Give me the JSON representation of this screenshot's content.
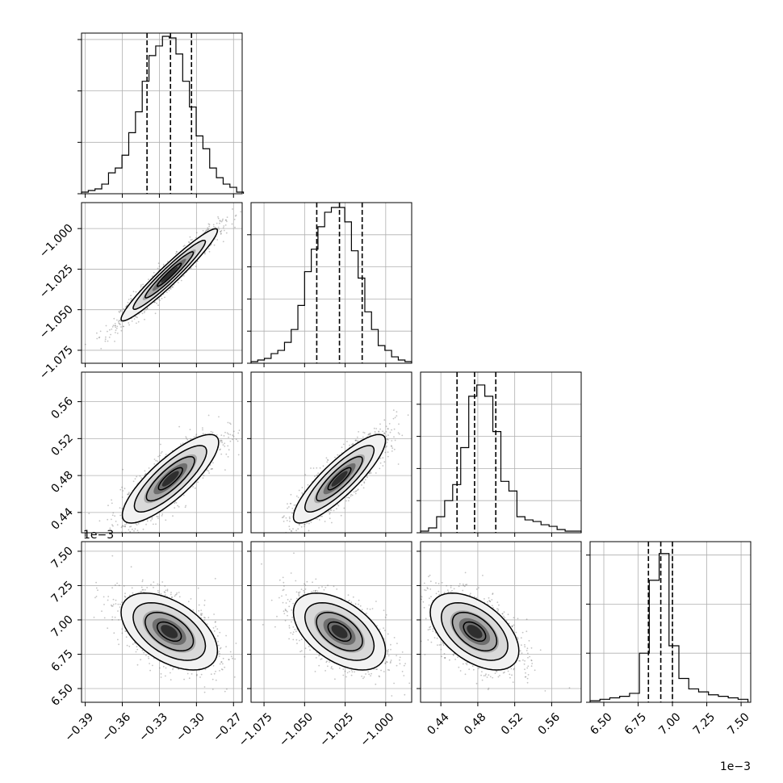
{
  "chart_data": {
    "type": "corner",
    "grid": true,
    "params": [
      {
        "index": 0,
        "axis_ticks": [
          -0.39,
          -0.36,
          -0.33,
          -0.3,
          -0.27
        ],
        "tick_labels": [
          "−0.39",
          "−0.36",
          "−0.33",
          "−0.30",
          "−0.27"
        ],
        "range": [
          -0.393,
          -0.263
        ],
        "quantiles": [
          -0.34,
          -0.321,
          -0.304
        ],
        "hist_bins": [
          -0.393,
          -0.262
        ],
        "hist_counts": [
          1,
          2,
          3,
          6,
          13,
          16,
          24,
          38,
          51,
          70,
          86,
          92,
          98,
          97,
          87,
          70,
          54,
          36,
          28,
          16,
          10,
          6,
          4,
          1
        ],
        "hist_max": 100,
        "hist_ticks": [
          0,
          32,
          64,
          96
        ]
      },
      {
        "index": 1,
        "axis_ticks": [
          -1.075,
          -1.05,
          -1.025,
          -1.0
        ],
        "tick_labels": [
          "−1.075",
          "−1.050",
          "−1.025",
          "−1.000"
        ],
        "range": [
          -1.083,
          -0.984
        ],
        "quantiles": [
          -1.0425,
          -1.0285,
          -1.0145
        ],
        "hist_bins": [
          -1.083,
          -0.984
        ],
        "hist_counts": [
          1,
          2,
          3,
          6,
          8,
          13,
          21,
          36,
          57,
          71,
          85,
          94,
          97,
          97,
          88,
          70,
          53,
          32,
          21,
          11,
          8,
          4,
          2,
          1
        ],
        "hist_max": 100,
        "hist_ticks": [
          0,
          20,
          40,
          60,
          80
        ]
      },
      {
        "index": 2,
        "axis_ticks": [
          0.44,
          0.48,
          0.52,
          0.56
        ],
        "tick_labels": [
          "0.44",
          "0.48",
          "0.52",
          "0.56"
        ],
        "range": [
          0.418,
          0.592
        ],
        "quantiles": [
          0.4575,
          0.4765,
          0.4995
        ],
        "hist_bins": [
          0.418,
          0.592
        ],
        "hist_counts": [
          1,
          3,
          10,
          20,
          30,
          53,
          85,
          92,
          85,
          63,
          32,
          26,
          10,
          8,
          7,
          5,
          4,
          2,
          1,
          1
        ],
        "hist_max": 100,
        "hist_ticks": [
          0,
          20,
          40,
          60,
          80
        ]
      },
      {
        "index": 3,
        "axis_ticks": [
          6.5,
          6.75,
          7.0,
          7.25,
          7.5
        ],
        "tick_labels": [
          "6.50",
          "6.75",
          "7.00",
          "7.25",
          "7.50"
        ],
        "range": [
          6.4,
          7.57
        ],
        "scale_label": "1e−3",
        "quantiles": [
          6.825,
          6.915,
          7.0
        ],
        "hist_bins": [
          6.4,
          7.55
        ],
        "hist_counts": [
          1,
          2,
          3,
          4,
          6,
          33,
          82,
          100,
          38,
          16,
          9,
          7,
          5,
          4,
          3,
          2
        ],
        "hist_max": 108,
        "hist_ticks": [
          0,
          33,
          66,
          99
        ]
      }
    ],
    "pairs": [
      {
        "row": 1,
        "col": 0,
        "mean": [
          -0.322,
          -1.0285
        ],
        "sd": [
          0.0195,
          0.0142
        ],
        "rho": 0.96
      },
      {
        "row": 2,
        "col": 0,
        "mean": [
          -0.321,
          0.4765
        ],
        "sd": [
          0.0195,
          0.024
        ],
        "rho": 0.82
      },
      {
        "row": 2,
        "col": 1,
        "mean": [
          -1.0285,
          0.4765
        ],
        "sd": [
          0.0142,
          0.024
        ],
        "rho": 0.86
      },
      {
        "row": 3,
        "col": 0,
        "mean": [
          -0.322,
          6.915
        ],
        "sd": [
          0.0195,
          0.14
        ],
        "rho": -0.5
      },
      {
        "row": 3,
        "col": 1,
        "mean": [
          -1.0285,
          6.915
        ],
        "sd": [
          0.0142,
          0.14
        ],
        "rho": -0.5
      },
      {
        "row": 3,
        "col": 2,
        "mean": [
          0.4765,
          6.915
        ],
        "sd": [
          0.024,
          0.14
        ],
        "rho": -0.5
      }
    ]
  }
}
